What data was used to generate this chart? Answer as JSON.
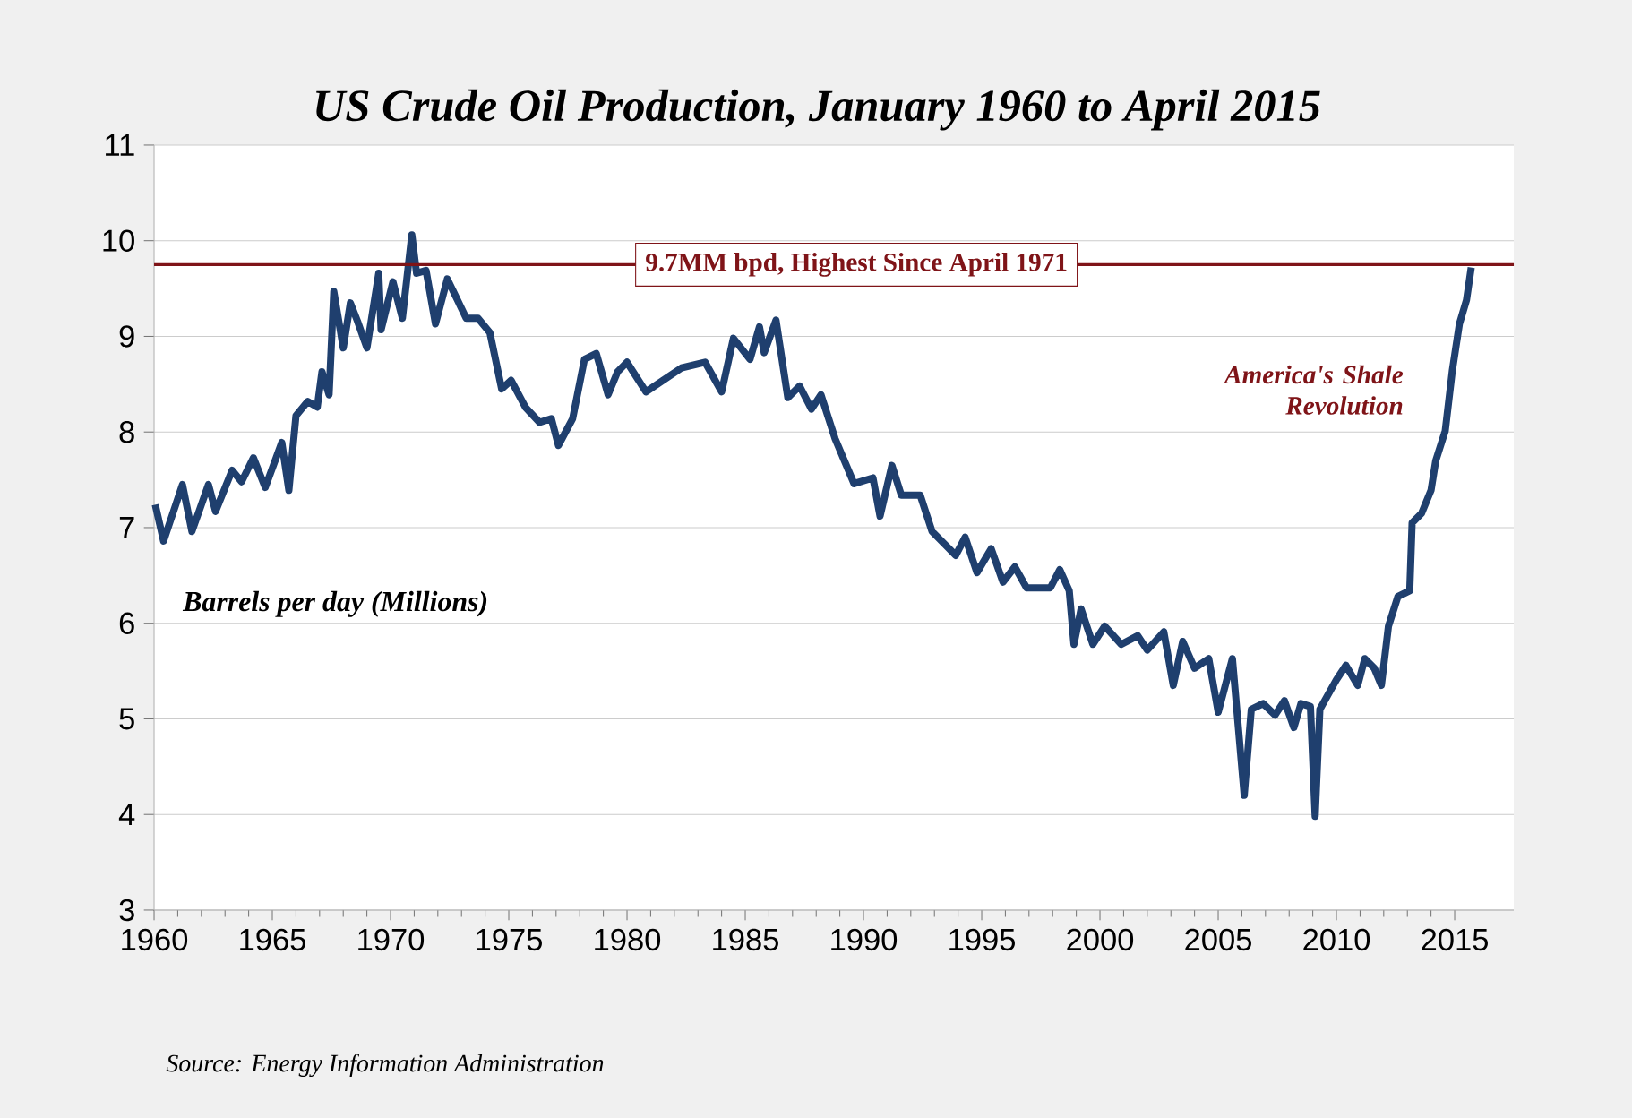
{
  "chart_data": {
    "type": "line",
    "title": "US Crude Oil Production, January 1960 to April 2015",
    "ylabel": "Barrels per day (Millions)",
    "xlim": [
      1960,
      2017.5
    ],
    "ylim": [
      3,
      11
    ],
    "xticks": [
      1960,
      1965,
      1970,
      1975,
      1980,
      1985,
      1990,
      1995,
      2000,
      2005,
      2010,
      2015
    ],
    "yticks": [
      3,
      4,
      5,
      6,
      7,
      8,
      9,
      10,
      11
    ],
    "grid": "y",
    "series": [
      {
        "color": "#1f3f6e",
        "x": [
          1960.05,
          1960.4,
          1961.2,
          1961.6,
          1962.3,
          1962.6,
          1963.3,
          1963.7,
          1964.2,
          1964.7,
          1965.4,
          1965.7,
          1966.0,
          1966.5,
          1966.9,
          1967.1,
          1967.4,
          1967.6,
          1968.0,
          1968.3,
          1968.6,
          1969.0,
          1969.5,
          1969.6,
          1970.1,
          1970.5,
          1970.9,
          1971.1,
          1971.5,
          1971.9,
          1972.4,
          1973.2,
          1973.7,
          1974.2,
          1974.7,
          1975.1,
          1975.7,
          1976.3,
          1976.8,
          1977.1,
          1977.7,
          1978.2,
          1978.7,
          1979.2,
          1979.6,
          1980.0,
          1980.8,
          1982.3,
          1983.3,
          1984.0,
          1984.5,
          1985.2,
          1985.6,
          1985.8,
          1986.3,
          1986.8,
          1987.3,
          1987.8,
          1988.2,
          1988.8,
          1989.6,
          1990.4,
          1990.7,
          1991.2,
          1991.6,
          1992.4,
          1992.9,
          1993.9,
          1994.3,
          1994.8,
          1995.4,
          1995.9,
          1996.4,
          1996.9,
          1997.9,
          1998.3,
          1998.7,
          1998.9,
          1999.2,
          1999.7,
          2000.2,
          2000.9,
          2001.6,
          2002.0,
          2002.7,
          2003.1,
          2003.5,
          2004.0,
          2004.6,
          2005.0,
          2005.6,
          2006.1,
          2006.4,
          2006.9,
          2007.4,
          2007.8,
          2008.2,
          2008.5,
          2008.9,
          2009.1,
          2009.3,
          2010.0,
          2010.4,
          2010.9,
          2011.2,
          2011.6,
          2011.9,
          2012.2,
          2012.6,
          2013.1,
          2013.2,
          2013.6,
          2014.0,
          2014.2,
          2014.6,
          2014.9,
          2015.2,
          2015.5,
          2015.7
        ],
        "values": [
          7.24,
          6.86,
          7.45,
          6.96,
          7.45,
          7.17,
          7.6,
          7.48,
          7.73,
          7.42,
          7.89,
          7.39,
          8.17,
          8.32,
          8.26,
          8.63,
          8.39,
          9.47,
          8.88,
          9.35,
          9.16,
          8.88,
          9.66,
          9.07,
          9.57,
          9.19,
          10.06,
          9.66,
          9.69,
          9.13,
          9.6,
          9.19,
          9.19,
          9.04,
          8.45,
          8.54,
          8.26,
          8.1,
          8.14,
          7.86,
          8.14,
          8.76,
          8.82,
          8.39,
          8.63,
          8.73,
          8.42,
          8.67,
          8.73,
          8.42,
          8.98,
          8.76,
          9.1,
          8.83,
          9.17,
          8.36,
          8.48,
          8.24,
          8.39,
          7.93,
          7.46,
          7.52,
          7.12,
          7.65,
          7.34,
          7.34,
          6.96,
          6.71,
          6.9,
          6.53,
          6.78,
          6.43,
          6.59,
          6.37,
          6.37,
          6.56,
          6.34,
          5.78,
          6.15,
          5.78,
          5.97,
          5.78,
          5.87,
          5.72,
          5.91,
          5.35,
          5.81,
          5.53,
          5.63,
          5.07,
          5.63,
          4.2,
          5.1,
          5.16,
          5.04,
          5.19,
          4.91,
          5.16,
          5.13,
          3.98,
          5.1,
          5.41,
          5.56,
          5.35,
          5.63,
          5.53,
          5.35,
          5.97,
          6.28,
          6.34,
          7.05,
          7.15,
          7.39,
          7.7,
          8.01,
          8.64,
          9.13,
          9.38,
          9.72
        ]
      }
    ],
    "ref_lines": [
      {
        "axis": "y",
        "value": 9.75,
        "label": "9.7MM bpd, Highest Since April 1971",
        "color": "#7f1418"
      }
    ],
    "annotations": [
      "America's Shale Revolution",
      "Source: Energy Information Administration"
    ]
  }
}
